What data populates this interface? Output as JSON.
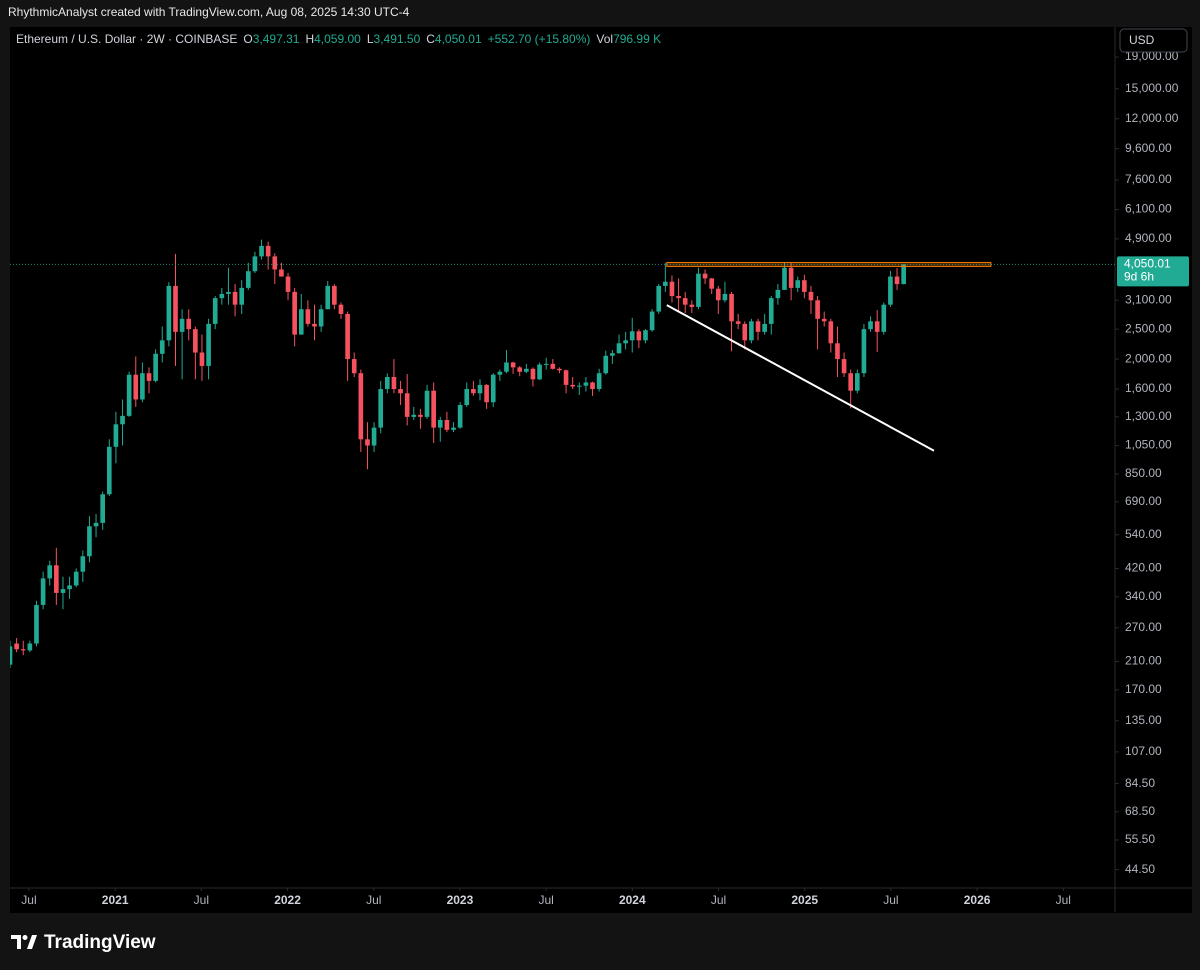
{
  "header": {
    "credit": "RhythmicAnalyst created with TradingView.com, Aug 08, 2025 14:30 UTC-4"
  },
  "branding": "TradingView",
  "chart_data": {
    "type": "candlestick",
    "symbol": "Ethereum / U.S. Dollar · 2W · COINBASE",
    "ohlc_legend": [
      {
        "key": "O",
        "text": "3,497.31"
      },
      {
        "key": "H",
        "text": "4,059.00"
      },
      {
        "key": "L",
        "text": "3,491.50"
      },
      {
        "key": "C",
        "text": "4,050.01"
      }
    ],
    "change_label": "+552.70 (+15.80%)",
    "volume": {
      "key": "Vol",
      "text": "796.99 K"
    },
    "currency": "USD",
    "last_price_label": "4,050.01",
    "countdown": "9d 6h",
    "up_color": "#22ab94",
    "down_color": "#f7525f",
    "log_scale": true,
    "xlim": [
      2020.39,
      2026.8
    ],
    "ylim": [
      38.8,
      23770
    ],
    "xticks": [
      {
        "value": 2020.5,
        "label": "Jul"
      },
      {
        "value": 2021,
        "label": "2021"
      },
      {
        "value": 2021.5,
        "label": "Jul"
      },
      {
        "value": 2022,
        "label": "2022"
      },
      {
        "value": 2022.5,
        "label": "Jul"
      },
      {
        "value": 2023,
        "label": "2023"
      },
      {
        "value": 2023.5,
        "label": "Jul"
      },
      {
        "value": 2024,
        "label": "2024"
      },
      {
        "value": 2024.5,
        "label": "Jul"
      },
      {
        "value": 2025,
        "label": "2025"
      },
      {
        "value": 2025.5,
        "label": "Jul"
      },
      {
        "value": 2026,
        "label": "2026"
      },
      {
        "value": 2026.5,
        "label": "Jul"
      }
    ],
    "yticks": [
      {
        "value": 19000,
        "label": "19,000.00"
      },
      {
        "value": 15000,
        "label": "15,000.00"
      },
      {
        "value": 12000,
        "label": "12,000.00"
      },
      {
        "value": 9600,
        "label": "9,600.00"
      },
      {
        "value": 7600,
        "label": "7,600.00"
      },
      {
        "value": 6100,
        "label": "6,100.00"
      },
      {
        "value": 4900,
        "label": "4,900.00"
      },
      {
        "value": 3100,
        "label": "3,100.00"
      },
      {
        "value": 2500,
        "label": "2,500.00"
      },
      {
        "value": 2000,
        "label": "2,000.00"
      },
      {
        "value": 1600,
        "label": "1,600.00"
      },
      {
        "value": 1300,
        "label": "1,300.00"
      },
      {
        "value": 1050,
        "label": "1,050.00"
      },
      {
        "value": 850,
        "label": "850.00"
      },
      {
        "value": 690,
        "label": "690.00"
      },
      {
        "value": 540,
        "label": "540.00"
      },
      {
        "value": 420,
        "label": "420.00"
      },
      {
        "value": 340,
        "label": "340.00"
      },
      {
        "value": 270,
        "label": "270.00"
      },
      {
        "value": 210,
        "label": "210.00"
      },
      {
        "value": 170,
        "label": "170.00"
      },
      {
        "value": 135,
        "label": "135.00"
      },
      {
        "value": 107,
        "label": "107.00"
      },
      {
        "value": 84.5,
        "label": "84.50"
      },
      {
        "value": 68.5,
        "label": "68.50"
      },
      {
        "value": 55.5,
        "label": "55.50"
      },
      {
        "value": 44.5,
        "label": "44.50"
      }
    ],
    "resistance_zone": {
      "x": [
        2024.2,
        2026.08
      ],
      "y": [
        3990,
        4110
      ],
      "color": "#f57c00"
    },
    "trendline": {
      "x": [
        2024.2,
        2025.75
      ],
      "y": [
        2990,
        1010
      ],
      "color": "#ffffff"
    },
    "x": [
      2020.39,
      2020.4284,
      2020.4668,
      2020.5052,
      2020.5436,
      2020.582,
      2020.6204,
      2020.6588,
      2020.6972,
      2020.7356,
      2020.774,
      2020.8124,
      2020.8508,
      2020.8892,
      2020.9276,
      2020.966,
      2021.0044,
      2021.0428,
      2021.0812,
      2021.1196,
      2021.158,
      2021.1964,
      2021.2348,
      2021.2732,
      2021.3116,
      2021.35,
      2021.3884,
      2021.4268,
      2021.4652,
      2021.5036,
      2021.542,
      2021.5804,
      2021.6188,
      2021.6572,
      2021.6956,
      2021.734,
      2021.7724,
      2021.8108,
      2021.8492,
      2021.8876,
      2021.926,
      2021.9644,
      2022.0028,
      2022.0412,
      2022.0796,
      2022.118,
      2022.1564,
      2022.1948,
      2022.2332,
      2022.2716,
      2022.31,
      2022.3484,
      2022.3868,
      2022.4252,
      2022.4636,
      2022.502,
      2022.5404,
      2022.5788,
      2022.6172,
      2022.6556,
      2022.694,
      2022.7324,
      2022.7708,
      2022.8092,
      2022.8476,
      2022.886,
      2022.9244,
      2022.9628,
      2023.0012,
      2023.0396,
      2023.078,
      2023.1164,
      2023.1548,
      2023.1932,
      2023.2316,
      2023.27,
      2023.3084,
      2023.3468,
      2023.3852,
      2023.4236,
      2023.462,
      2023.5004,
      2023.5388,
      2023.5772,
      2023.6156,
      2023.654,
      2023.6924,
      2023.7308,
      2023.7692,
      2023.8076,
      2023.846,
      2023.8844,
      2023.9228,
      2023.9612,
      2023.9996,
      2024.038,
      2024.0764,
      2024.1148,
      2024.1532,
      2024.1916,
      2024.23,
      2024.2684,
      2024.3068,
      2024.3452,
      2024.3836,
      2024.422,
      2024.4604,
      2024.4988,
      2024.5372,
      2024.5756,
      2024.614,
      2024.6524,
      2024.6908,
      2024.7292,
      2024.7676,
      2024.806,
      2024.8444,
      2024.8828,
      2024.9212,
      2024.9596,
      2024.998,
      2025.0364,
      2025.0748,
      2025.1132,
      2025.1516,
      2025.19,
      2025.2284,
      2025.2668,
      2025.3052,
      2025.3436,
      2025.382,
      2025.4204,
      2025.4588,
      2025.4972,
      2025.5356,
      2025.574
    ],
    "ohlc": [
      [
        205,
        245,
        200,
        235
      ],
      [
        240,
        250,
        225,
        230
      ],
      [
        230,
        245,
        220,
        228
      ],
      [
        228,
        245,
        225,
        240
      ],
      [
        240,
        330,
        235,
        320
      ],
      [
        320,
        410,
        310,
        390
      ],
      [
        390,
        445,
        370,
        430
      ],
      [
        430,
        490,
        320,
        350
      ],
      [
        350,
        395,
        310,
        360
      ],
      [
        360,
        395,
        335,
        370
      ],
      [
        370,
        420,
        365,
        410
      ],
      [
        410,
        480,
        380,
        460
      ],
      [
        460,
        620,
        440,
        575
      ],
      [
        575,
        630,
        530,
        590
      ],
      [
        590,
        745,
        560,
        730
      ],
      [
        730,
        1100,
        720,
        1040
      ],
      [
        1040,
        1350,
        920,
        1230
      ],
      [
        1230,
        1480,
        1050,
        1310
      ],
      [
        1310,
        1820,
        1300,
        1780
      ],
      [
        1780,
        2040,
        1400,
        1480
      ],
      [
        1480,
        1950,
        1450,
        1800
      ],
      [
        1800,
        1880,
        1550,
        1700
      ],
      [
        1700,
        2150,
        1680,
        2080
      ],
      [
        2080,
        2550,
        1950,
        2300
      ],
      [
        2300,
        3550,
        2200,
        3450
      ],
      [
        3450,
        4380,
        1900,
        2450
      ],
      [
        2450,
        2900,
        1720,
        2700
      ],
      [
        2700,
        2900,
        2300,
        2500
      ],
      [
        2500,
        2550,
        1720,
        2100
      ],
      [
        2100,
        2400,
        1700,
        1900
      ],
      [
        1900,
        2700,
        1720,
        2600
      ],
      [
        2600,
        3200,
        2500,
        3150
      ],
      [
        3150,
        3400,
        3000,
        3250
      ],
      [
        3250,
        3950,
        3000,
        3300
      ],
      [
        3300,
        3500,
        2750,
        3000
      ],
      [
        3000,
        3600,
        2800,
        3400
      ],
      [
        3400,
        4100,
        3350,
        3850
      ],
      [
        3850,
        4450,
        3800,
        4300
      ],
      [
        4300,
        4870,
        4200,
        4650
      ],
      [
        4650,
        4800,
        3900,
        4300
      ],
      [
        4300,
        4400,
        3500,
        3900
      ],
      [
        3900,
        4100,
        3700,
        3700
      ],
      [
        3700,
        3800,
        3100,
        3300
      ],
      [
        3300,
        3400,
        2200,
        2400
      ],
      [
        2400,
        3250,
        2400,
        2900
      ],
      [
        2900,
        3100,
        2550,
        2600
      ],
      [
        2600,
        3000,
        2300,
        2550
      ],
      [
        2550,
        3000,
        2450,
        2900
      ],
      [
        2900,
        3580,
        2900,
        3450
      ],
      [
        3450,
        3500,
        2900,
        3000
      ],
      [
        3000,
        3050,
        2700,
        2800
      ],
      [
        2800,
        2850,
        1700,
        2000
      ],
      [
        2000,
        2100,
        1750,
        1800
      ],
      [
        1800,
        1850,
        1000,
        1100
      ],
      [
        1100,
        1250,
        880,
        1050
      ],
      [
        1050,
        1250,
        1000,
        1200
      ],
      [
        1200,
        1700,
        1150,
        1600
      ],
      [
        1600,
        1800,
        1550,
        1750
      ],
      [
        1750,
        2000,
        1550,
        1600
      ],
      [
        1600,
        1700,
        1420,
        1550
      ],
      [
        1550,
        1790,
        1220,
        1300
      ],
      [
        1300,
        1400,
        1270,
        1320
      ],
      [
        1320,
        1380,
        1190,
        1300
      ],
      [
        1300,
        1650,
        1280,
        1580
      ],
      [
        1580,
        1680,
        1070,
        1200
      ],
      [
        1200,
        1300,
        1080,
        1270
      ],
      [
        1270,
        1350,
        1160,
        1180
      ],
      [
        1180,
        1250,
        1160,
        1200
      ],
      [
        1200,
        1450,
        1190,
        1420
      ],
      [
        1420,
        1680,
        1400,
        1600
      ],
      [
        1600,
        1700,
        1520,
        1550
      ],
      [
        1550,
        1720,
        1470,
        1650
      ],
      [
        1650,
        1660,
        1380,
        1450
      ],
      [
        1450,
        1800,
        1400,
        1780
      ],
      [
        1780,
        1850,
        1700,
        1820
      ],
      [
        1820,
        2140,
        1800,
        1950
      ],
      [
        1950,
        1960,
        1790,
        1880
      ],
      [
        1880,
        1900,
        1760,
        1820
      ],
      [
        1820,
        1930,
        1800,
        1860
      ],
      [
        1860,
        1880,
        1630,
        1720
      ],
      [
        1720,
        1950,
        1710,
        1920
      ],
      [
        1920,
        2020,
        1850,
        1930
      ],
      [
        1930,
        2000,
        1850,
        1860
      ],
      [
        1860,
        1880,
        1800,
        1840
      ],
      [
        1840,
        1850,
        1550,
        1650
      ],
      [
        1650,
        1750,
        1600,
        1630
      ],
      [
        1630,
        1680,
        1530,
        1640
      ],
      [
        1640,
        1750,
        1570,
        1680
      ],
      [
        1680,
        1690,
        1520,
        1600
      ],
      [
        1600,
        1860,
        1570,
        1800
      ],
      [
        1800,
        2130,
        1780,
        2050
      ],
      [
        2050,
        2140,
        1930,
        2090
      ],
      [
        2090,
        2400,
        2080,
        2250
      ],
      [
        2250,
        2450,
        2150,
        2300
      ],
      [
        2300,
        2720,
        2100,
        2460
      ],
      [
        2460,
        2500,
        2170,
        2300
      ],
      [
        2300,
        2500,
        2250,
        2480
      ],
      [
        2480,
        2900,
        2450,
        2850
      ],
      [
        2850,
        3500,
        2800,
        3450
      ],
      [
        3450,
        4090,
        3300,
        3560
      ],
      [
        3560,
        3730,
        3050,
        3200
      ],
      [
        3200,
        3650,
        2850,
        3150
      ],
      [
        3150,
        3300,
        2820,
        3000
      ],
      [
        3000,
        3100,
        2820,
        2950
      ],
      [
        2950,
        3950,
        2900,
        3780
      ],
      [
        3780,
        3900,
        3500,
        3650
      ],
      [
        3650,
        3660,
        3250,
        3380
      ],
      [
        3380,
        3450,
        2800,
        3100
      ],
      [
        3100,
        3560,
        3050,
        3250
      ],
      [
        3250,
        3300,
        2120,
        2650
      ],
      [
        2650,
        2800,
        2500,
        2600
      ],
      [
        2600,
        2650,
        2150,
        2300
      ],
      [
        2300,
        2700,
        2250,
        2650
      ],
      [
        2650,
        2700,
        2300,
        2450
      ],
      [
        2450,
        2800,
        2400,
        2600
      ],
      [
        2600,
        3200,
        2400,
        3150
      ],
      [
        3150,
        3500,
        3000,
        3350
      ],
      [
        3350,
        4100,
        3350,
        3950
      ],
      [
        3950,
        4100,
        3100,
        3400
      ],
      [
        3400,
        3700,
        3300,
        3600
      ],
      [
        3600,
        3750,
        3150,
        3300
      ],
      [
        3300,
        3450,
        2800,
        3100
      ],
      [
        3100,
        3200,
        2150,
        2700
      ],
      [
        2700,
        2850,
        2550,
        2650
      ],
      [
        2650,
        2700,
        2100,
        2250
      ],
      [
        2250,
        2550,
        1750,
        2000
      ],
      [
        2000,
        2100,
        1750,
        1800
      ],
      [
        1800,
        1850,
        1385,
        1580
      ],
      [
        1580,
        1850,
        1550,
        1800
      ],
      [
        1800,
        2600,
        1750,
        2500
      ],
      [
        2500,
        2750,
        2450,
        2650
      ],
      [
        2650,
        2880,
        2110,
        2450
      ],
      [
        2450,
        3050,
        2400,
        3000
      ],
      [
        3000,
        3860,
        2950,
        3700
      ],
      [
        3700,
        3940,
        3350,
        3497.31
      ],
      [
        3497.31,
        4059,
        3491.5,
        4050.01
      ]
    ]
  }
}
